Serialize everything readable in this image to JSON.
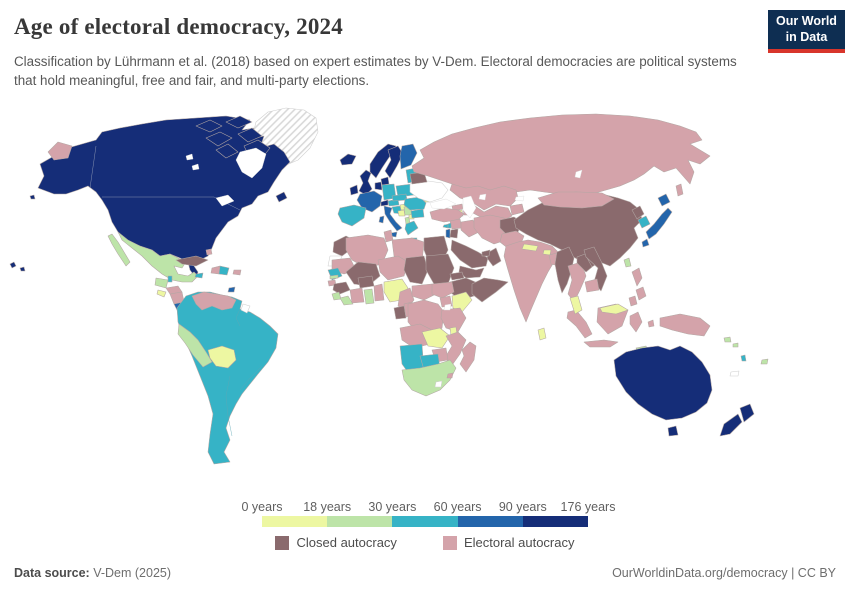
{
  "header": {
    "title": "Age of electoral democracy, 2024",
    "subtitle": "Classification by Lührmann et al. (2018) based on expert estimates by V-Dem. Electoral democracies are political systems that hold meaningful, free and fair, and multi-party elections."
  },
  "logo": {
    "line1": "Our World",
    "line2": "in Data",
    "bg": "#0e2e52",
    "stripe": "#d8352b"
  },
  "legend": {
    "ticks": [
      "0 years",
      "18 years",
      "30 years",
      "60 years",
      "90 years",
      "176 years"
    ],
    "band_colors": [
      "#edf7a2",
      "#bde4a8",
      "#36b3c6",
      "#2365ab",
      "#152d78"
    ],
    "categories": [
      {
        "label": "Closed autocracy",
        "color": "#8a6a6d"
      },
      {
        "label": "Electoral autocracy",
        "color": "#d4a3aa"
      }
    ]
  },
  "footer": {
    "source_label": "Data source:",
    "source_value": "V-Dem (2025)",
    "right": "OurWorldinData.org/democracy | CC BY"
  },
  "chart_data": {
    "type": "choropleth",
    "title": "Age of electoral democracy, 2024",
    "unit": "years",
    "bin_edges_years": [
      0,
      18,
      30,
      60,
      90,
      176
    ],
    "bins": [
      {
        "min": 0,
        "max": 18,
        "color": "#edf7a2"
      },
      {
        "min": 18,
        "max": 30,
        "color": "#bde4a8"
      },
      {
        "min": 30,
        "max": 60,
        "color": "#36b3c6"
      },
      {
        "min": 60,
        "max": 90,
        "color": "#2365ab"
      },
      {
        "min": 90,
        "max": 176,
        "color": "#152d78"
      }
    ],
    "palette": {
      "y0": "#edf7a2",
      "y18": "#bde4a8",
      "y30": "#36b3c6",
      "y60": "#2365ab",
      "y90": "#152d78",
      "closed": "#8a6a6d",
      "electoral": "#d4a3aa",
      "nodata": "#ffffff",
      "hatch": "hatch"
    },
    "countries": {
      "united-states": "y90",
      "canada": "y90",
      "greenland": "hatch",
      "mexico": "y18",
      "guatemala": "y18",
      "belize": "y30",
      "honduras": "electoral",
      "el-salvador": "y0",
      "nicaragua": "electoral",
      "costa-rica": "y60",
      "panama": "y30",
      "cuba": "closed",
      "jamaica": "y30",
      "haiti": "electoral",
      "dominican-republic": "y30",
      "puerto-rico": "electoral",
      "bahamas": "electoral",
      "trinidad-tobago": "y60",
      "venezuela": "electoral",
      "colombia": "y30",
      "ecuador": "y30",
      "guyana": "y30",
      "suriname": "y30",
      "french-guiana": "nodata",
      "peru": "y18",
      "bolivia": "y0",
      "brazil": "y30",
      "paraguay": "y30",
      "uruguay": "y30",
      "argentina": "y30",
      "chile": "y30",
      "iceland": "y90",
      "united-kingdom": "y90",
      "ireland": "y90",
      "norway": "y90",
      "sweden": "y90",
      "finland": "y60",
      "denmark": "y90",
      "netherlands": "y90",
      "belgium": "y90",
      "germany": "y30",
      "poland": "y30",
      "estonia": "y30",
      "latvia": "y30",
      "lithuania": "y30",
      "belarus": "closed",
      "ukraine": "nodata",
      "france": "y60",
      "switzerland": "y90",
      "austria": "y30",
      "czechia": "y30",
      "slovakia": "y30",
      "hungary": "y0",
      "spain": "y30",
      "portugal": "y30",
      "italy": "y60",
      "croatia": "y30",
      "slovenia": "y30",
      "bosnia-herzegovina": "y0",
      "serbia": "y18",
      "montenegro": "y0",
      "albania": "y18",
      "north-macedonia": "y0",
      "greece": "y30",
      "bulgaria": "y30",
      "romania": "y30",
      "moldova": "y0",
      "russia": "electoral",
      "kazakhstan": "electoral",
      "uzbekistan": "electoral",
      "turkmenistan": "electoral",
      "kyrgyzstan": "electoral",
      "tajikistan": "electoral",
      "georgia": "electoral",
      "armenia": "y0",
      "azerbaijan": "electoral",
      "turkey": "electoral",
      "cyprus": "y30",
      "syria": "electoral",
      "lebanon": "y30",
      "israel": "y60",
      "jordan": "closed",
      "iraq": "electoral",
      "iran": "electoral",
      "saudi-arabia": "closed",
      "yemen": "closed",
      "oman": "closed",
      "united-arab-emirates": "closed",
      "afghanistan": "closed",
      "pakistan": "electoral",
      "india": "electoral",
      "nepal": "y0",
      "bhutan": "y0",
      "bangladesh": "electoral",
      "sri-lanka": "y0",
      "myanmar": "closed",
      "thailand": "electoral",
      "laos": "closed",
      "vietnam": "closed",
      "cambodia": "electoral",
      "malaysia": "y0",
      "china": "closed",
      "mongolia": "electoral",
      "north-korea": "closed",
      "south-korea": "y30",
      "japan": "y60",
      "taiwan": "y18",
      "philippines": "electoral",
      "indonesia": "electoral",
      "papua-new-guinea": "electoral",
      "timor-leste": "y18",
      "australia": "y90",
      "new-zealand": "y90",
      "fiji": "y18",
      "vanuatu": "y30",
      "solomon-islands": "y18",
      "new-caledonia": "nodata",
      "morocco": "closed",
      "western-sahara": "nodata",
      "algeria": "electoral",
      "tunisia": "electoral",
      "libya": "electoral",
      "egypt": "closed",
      "mauritania": "electoral",
      "mali": "closed",
      "niger": "electoral",
      "chad": "closed",
      "sudan": "closed",
      "eritrea": "closed",
      "ethiopia": "closed",
      "somalia": "closed",
      "djibouti": "closed",
      "senegal": "y30",
      "gambia": "y18",
      "guinea-bissau": "electoral",
      "guinea": "closed",
      "sierra-leone": "y18",
      "liberia": "y18",
      "cote-divoire": "electoral",
      "burkina-faso": "closed",
      "ghana": "y18",
      "togo": "electoral",
      "benin": "electoral",
      "nigeria": "y0",
      "cameroon": "electoral",
      "central-african-republic": "electoral",
      "south-sudan": "electoral",
      "uganda": "electoral",
      "kenya": "y0",
      "gabon": "closed",
      "congo": "electoral",
      "dr-congo": "electoral",
      "rwanda": "electoral",
      "burundi": "electoral",
      "tanzania": "electoral",
      "angola": "electoral",
      "zambia": "y0",
      "malawi": "y0",
      "mozambique": "electoral",
      "zimbabwe": "electoral",
      "botswana": "y30",
      "namibia": "y30",
      "south-africa": "y18",
      "lesotho": "nodata",
      "eswatini": "electoral",
      "madagascar": "electoral"
    }
  }
}
